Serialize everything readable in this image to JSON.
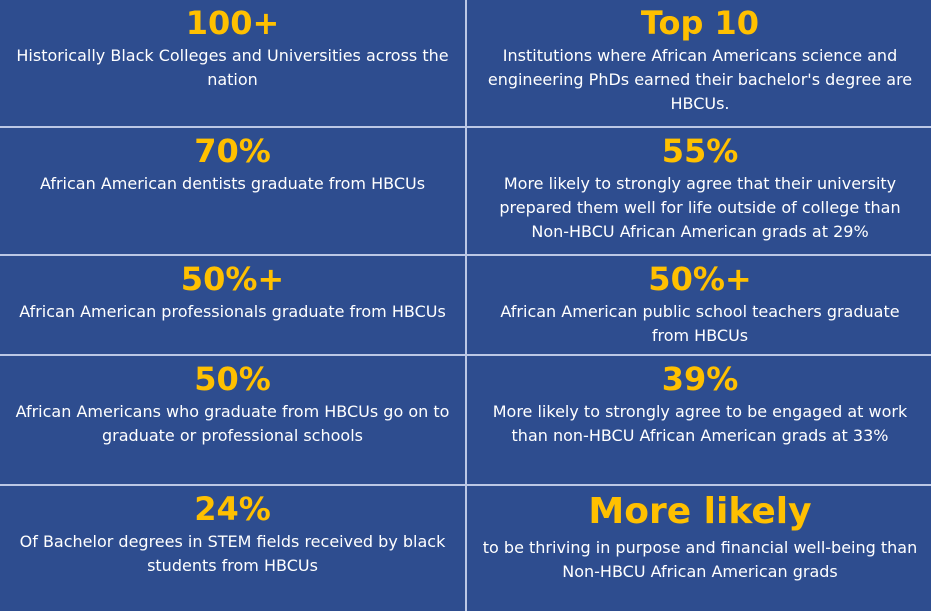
{
  "colors": {
    "panel": "#2e4d8f",
    "highlight": "#ffc000",
    "text": "#ffffff",
    "divider": "#bcc8e6"
  },
  "cells": [
    {
      "stat": "100+",
      "desc": "Historically Black Colleges and Universities across the nation"
    },
    {
      "stat": "Top 10",
      "desc": "Institutions where African Americans science and engineering PhDs earned their bachelor's degree are HBCUs."
    },
    {
      "stat": "70%",
      "desc": "African American dentists graduate from HBCUs"
    },
    {
      "stat": "55%",
      "desc": "More likely to strongly agree that their university prepared them well for life outside of college than Non-HBCU African American grads at 29%"
    },
    {
      "stat": "50%+",
      "desc": "African American professionals graduate from HBCUs"
    },
    {
      "stat": "50%+",
      "desc": "African American public school teachers graduate from HBCUs"
    },
    {
      "stat": "50%",
      "desc": "African Americans who graduate from HBCUs go on to graduate or professional schools"
    },
    {
      "stat": "39%",
      "desc": "More likely to strongly agree to be engaged at work than non-HBCU African American grads at 33%"
    },
    {
      "stat": "24%",
      "desc": "Of Bachelor degrees in STEM fields received by black students from HBCUs"
    },
    {
      "stat": "More likely",
      "desc": "to be thriving in purpose and financial well-being than Non-HBCU African American grads"
    }
  ]
}
